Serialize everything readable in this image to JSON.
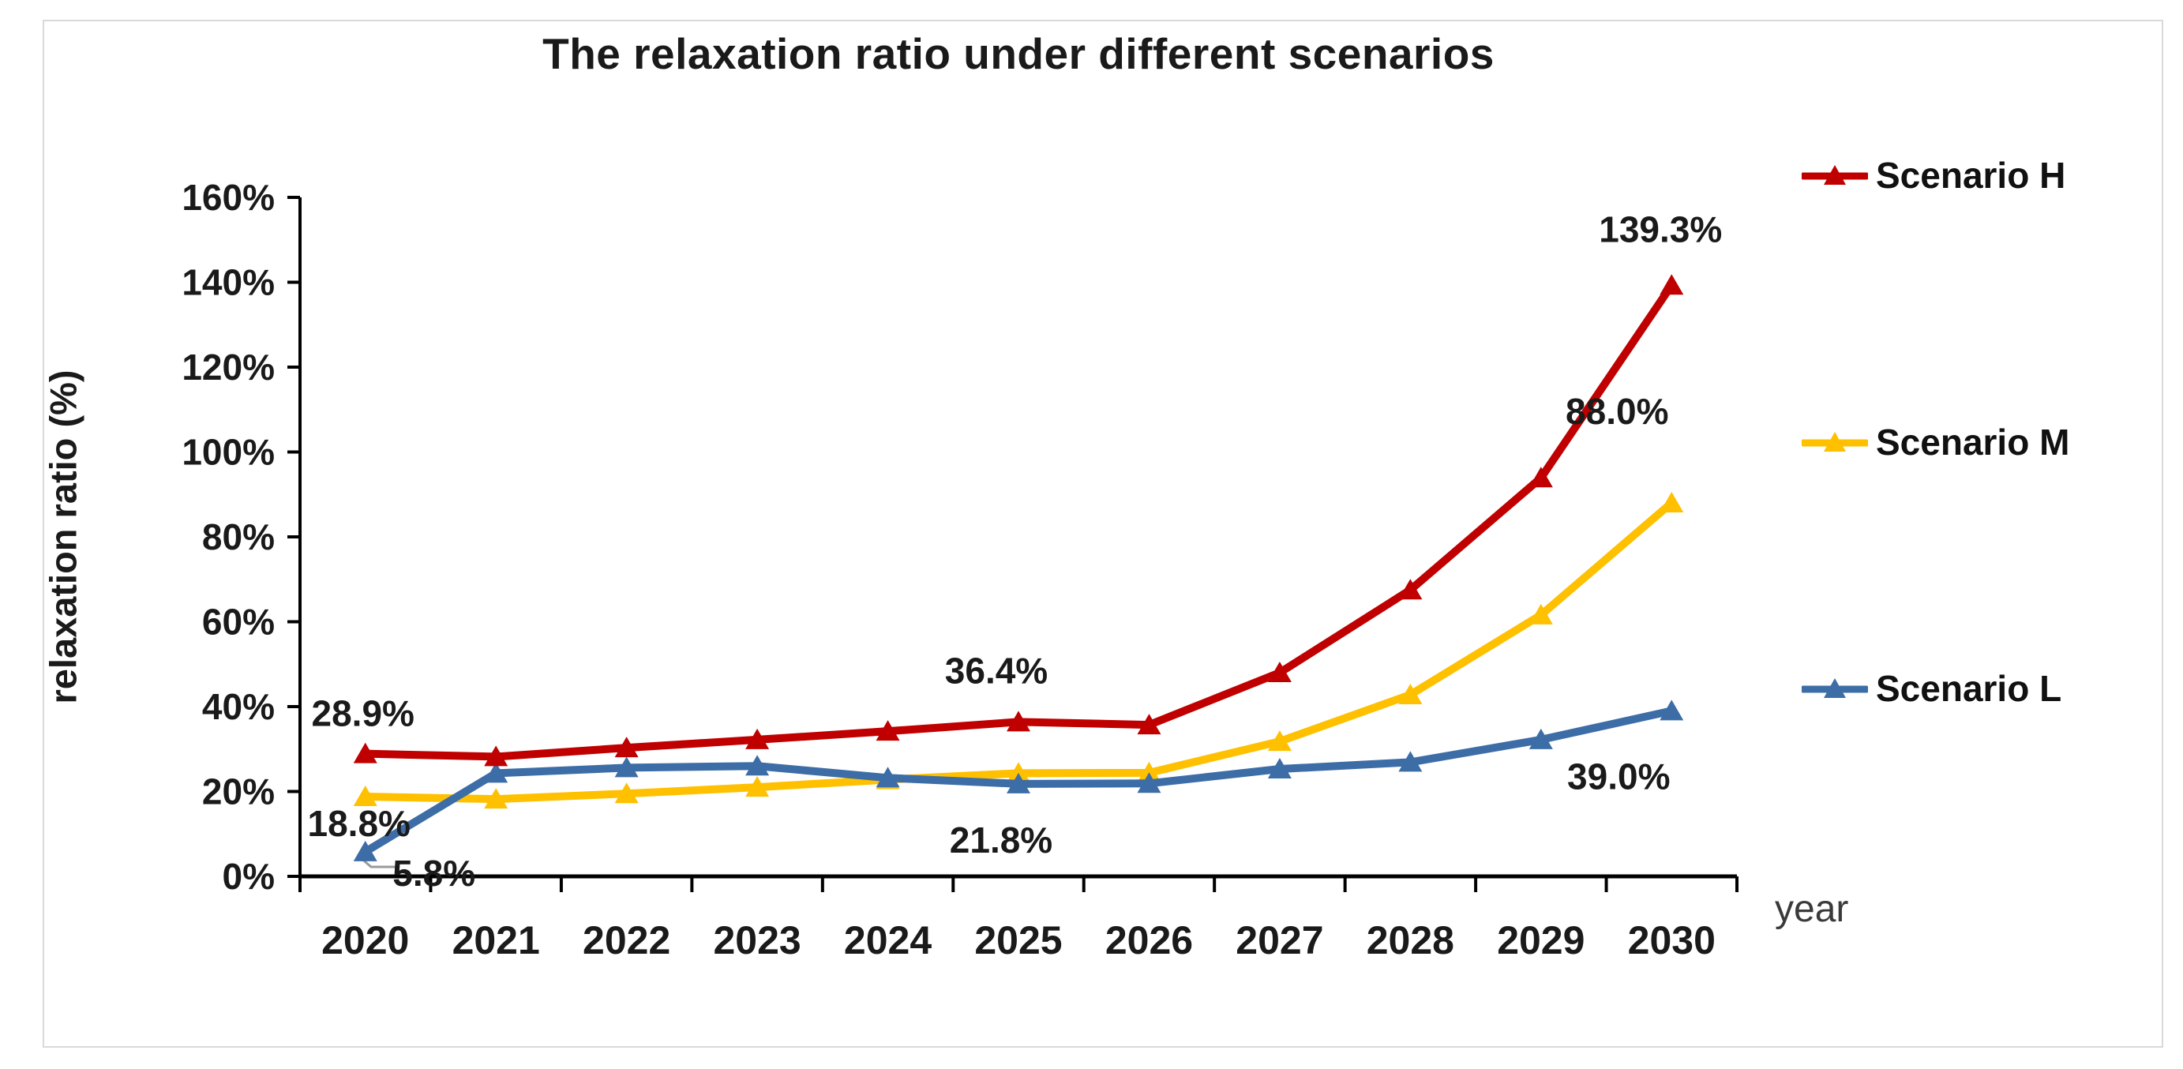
{
  "chart": {
    "title": "The relaxation ratio under different scenarios",
    "y_axis_title": "relaxation ratio  (%)",
    "x_axis_unit": "year",
    "colors": {
      "scenario_h": "#C00000",
      "scenario_m": "#FFC000",
      "scenario_l": "#3D6DA6",
      "axis": "#000000",
      "text": "#1A1A1A",
      "frame_border": "#D9D9D9",
      "leader_line": "#9A9A9A"
    }
  },
  "chart_data": {
    "type": "line",
    "title": "The relaxation ratio under different scenarios",
    "xlabel": "year",
    "ylabel": "relaxation ratio (%)",
    "ylim": [
      0,
      160
    ],
    "y_tick_step": 20,
    "grid": false,
    "legend_position": "right",
    "marker": "triangle",
    "y_tick_labels": [
      "0%",
      "20%",
      "40%",
      "60%",
      "80%",
      "100%",
      "120%",
      "140%",
      "160%"
    ],
    "categories": [
      "2020",
      "2021",
      "2022",
      "2023",
      "2024",
      "2025",
      "2026",
      "2027",
      "2028",
      "2029",
      "2030"
    ],
    "series": [
      {
        "name": "Scenario H",
        "color_key": "scenario_h",
        "values": [
          28.9,
          28.2,
          30.3,
          32.2,
          34.2,
          36.4,
          35.7,
          48.0,
          67.5,
          93.9,
          139.3
        ]
      },
      {
        "name": "Scenario M",
        "color_key": "scenario_m",
        "values": [
          18.8,
          18.2,
          19.5,
          21.0,
          22.8,
          24.3,
          24.4,
          31.8,
          42.8,
          61.6,
          88.0
        ]
      },
      {
        "name": "Scenario L",
        "color_key": "scenario_l",
        "values": [
          5.8,
          24.3,
          25.6,
          26.0,
          23.2,
          21.8,
          21.9,
          25.3,
          26.9,
          32.2,
          39.0
        ]
      }
    ],
    "point_labels": [
      {
        "series": "Scenario H",
        "category": "2020",
        "text": "28.9%"
      },
      {
        "series": "Scenario M",
        "category": "2020",
        "text": "18.8%"
      },
      {
        "series": "Scenario L",
        "category": "2020",
        "text": "5.8%"
      },
      {
        "series": "Scenario H",
        "category": "2025",
        "text": "36.4%"
      },
      {
        "series": "Scenario L",
        "category": "2025",
        "text": "21.8%"
      },
      {
        "series": "Scenario H",
        "category": "2030",
        "text": "139.3%"
      },
      {
        "series": "Scenario M",
        "category": "2030",
        "text": "88.0%"
      },
      {
        "series": "Scenario L",
        "category": "2030",
        "text": "39.0%"
      }
    ]
  }
}
